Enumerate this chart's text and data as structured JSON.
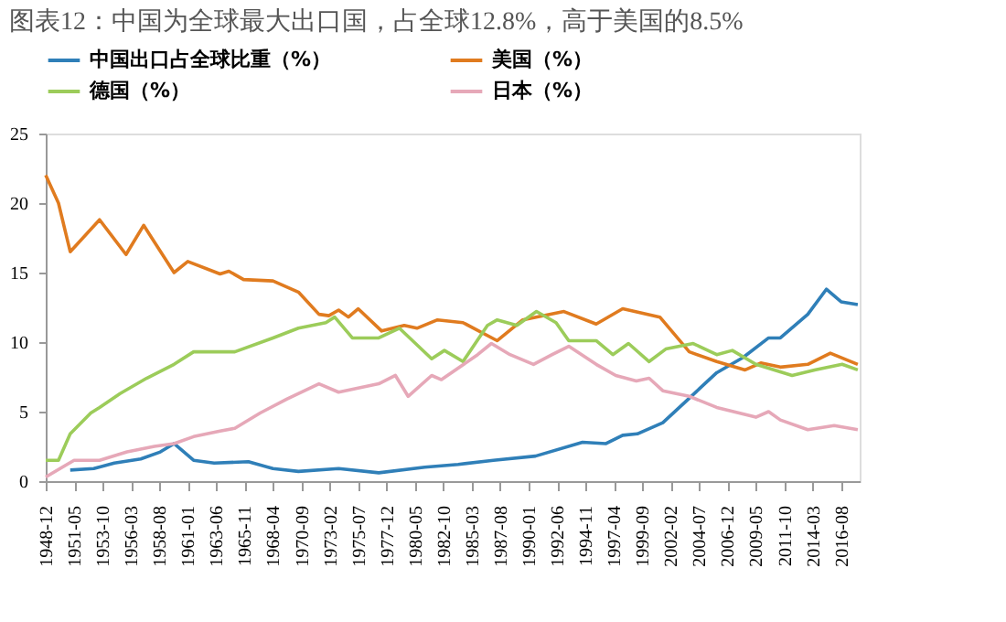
{
  "chart_data": {
    "type": "line",
    "title": "图表12：中国为全球最大出口国，占全球12.8%，高于美国的8.5%",
    "series": [
      {
        "name": "中国出口占全球比重（%）",
        "color": "#2f7fb8",
        "x": [
          "1951-01",
          "1953-01",
          "1954-10",
          "1957-01",
          "1958-09",
          "1959-11",
          "1961-07",
          "1963-04",
          "1966-03",
          "1968-04",
          "1970-06",
          "1973-11",
          "1977-04",
          "1981-03",
          "1984-01",
          "1987-01",
          "1990-08",
          "1994-08",
          "1996-08",
          "1998-01",
          "1999-04",
          "2001-06",
          "2003-08",
          "2006-01",
          "2008-04",
          "2010-06",
          "2011-06",
          "2013-10",
          "2015-05",
          "2016-08",
          "2018-01"
        ],
        "values": [
          0.8,
          0.9,
          1.3,
          1.6,
          2.1,
          2.7,
          1.5,
          1.3,
          1.4,
          0.9,
          0.7,
          0.9,
          0.6,
          1.0,
          1.2,
          1.5,
          1.8,
          2.8,
          2.7,
          3.3,
          3.4,
          4.2,
          5.9,
          7.8,
          8.9,
          10.3,
          10.3,
          12.0,
          13.8,
          12.9,
          12.7
        ]
      },
      {
        "name": "美国（%）",
        "color": "#e07b1f",
        "x": [
          "1948-12",
          "1950-01",
          "1951-01",
          "1953-07",
          "1955-10",
          "1957-04",
          "1959-11",
          "1961-01",
          "1963-10",
          "1964-07",
          "1965-10",
          "1968-04",
          "1970-06",
          "1972-03",
          "1973-01",
          "1973-11",
          "1974-09",
          "1975-07",
          "1977-07",
          "1979-06",
          "1980-07",
          "1982-04",
          "1984-06",
          "1987-05",
          "1989-07",
          "1993-01",
          "1995-10",
          "1998-01",
          "2001-03",
          "2003-09",
          "2006-01",
          "2008-06",
          "2009-10",
          "2011-06",
          "2013-10",
          "2015-09",
          "2018-01"
        ],
        "values": [
          22,
          20,
          16.5,
          18.8,
          16.3,
          18.4,
          15.0,
          15.8,
          14.9,
          15.1,
          14.5,
          14.4,
          13.6,
          12.0,
          11.9,
          12.3,
          11.8,
          12.4,
          10.8,
          11.2,
          11.0,
          11.6,
          11.4,
          10.1,
          11.6,
          12.2,
          11.3,
          12.4,
          11.8,
          9.3,
          8.6,
          8.0,
          8.5,
          8.2,
          8.4,
          9.2,
          8.4
        ]
      },
      {
        "name": "德国（%）",
        "color": "#9ccc5a",
        "x": [
          "1948-12",
          "1950-01",
          "1951-01",
          "1952-10",
          "1953-07",
          "1955-04",
          "1957-07",
          "1959-11",
          "1961-07",
          "1965-01",
          "1968-04",
          "1970-06",
          "1972-10",
          "1973-07",
          "1975-01",
          "1977-04",
          "1979-01",
          "1981-10",
          "1982-11",
          "1984-06",
          "1986-07",
          "1987-05",
          "1989-01",
          "1990-09",
          "1992-05",
          "1993-06",
          "1995-10",
          "1997-03",
          "1998-07",
          "2000-04",
          "2001-09",
          "2004-01",
          "2006-01",
          "2007-05",
          "2009-05",
          "2012-06",
          "2014-05",
          "2016-09",
          "2018-01"
        ],
        "values": [
          1.5,
          1.5,
          3.4,
          4.9,
          5.3,
          6.3,
          7.4,
          8.4,
          9.3,
          9.3,
          10.3,
          11.0,
          11.4,
          11.8,
          10.3,
          10.3,
          11.0,
          8.8,
          9.4,
          8.6,
          11.2,
          11.6,
          11.2,
          12.2,
          11.4,
          10.1,
          10.1,
          9.1,
          9.9,
          8.6,
          9.5,
          9.9,
          9.1,
          9.4,
          8.4,
          7.6,
          8.0,
          8.4,
          8.0
        ]
      },
      {
        "name": "日本（%）",
        "color": "#e6a8b8",
        "x": [
          "1948-12",
          "1951-05",
          "1953-07",
          "1955-11",
          "1958-03",
          "1959-11",
          "1961-07",
          "1963-10",
          "1965-01",
          "1967-03",
          "1969-06",
          "1972-03",
          "1973-11",
          "1977-04",
          "1978-09",
          "1979-10",
          "1981-10",
          "1982-08",
          "1985-09",
          "1986-11",
          "1988-06",
          "1990-06",
          "1992-01",
          "1993-06",
          "1995-10",
          "1997-06",
          "1999-03",
          "2000-04",
          "2001-06",
          "2003-09",
          "2006-01",
          "2009-05",
          "2010-06",
          "2011-06",
          "2013-10",
          "2016-01",
          "2018-01"
        ],
        "values": [
          0.3,
          1.5,
          1.5,
          2.1,
          2.5,
          2.7,
          3.2,
          3.6,
          3.8,
          4.9,
          5.9,
          7.0,
          6.4,
          7.0,
          7.6,
          6.1,
          7.6,
          7.3,
          9.1,
          9.9,
          9.1,
          8.4,
          9.1,
          9.7,
          8.4,
          7.6,
          7.2,
          7.4,
          6.5,
          6.1,
          5.3,
          4.6,
          5.0,
          4.4,
          3.7,
          4.0,
          3.7
        ]
      }
    ],
    "xlim": [
      "1948-12",
      "2018-03"
    ],
    "xticks": [
      "1948-12",
      "1951-05",
      "1953-10",
      "1956-03",
      "1958-08",
      "1961-01",
      "1963-06",
      "1965-11",
      "1968-04",
      "1970-09",
      "1973-02",
      "1975-07",
      "1977-12",
      "1980-05",
      "1982-10",
      "1985-03",
      "1987-08",
      "1990-01",
      "1992-06",
      "1994-11",
      "1997-04",
      "1999-09",
      "2002-02",
      "2004-07",
      "2006-12",
      "2009-05",
      "2011-10",
      "2014-03",
      "2016-08"
    ],
    "ylim": [
      0,
      25
    ],
    "yticks": [
      0,
      5,
      10,
      15,
      20,
      25
    ],
    "grid": false,
    "legend": "top",
    "marker": "none",
    "line_style": "solid"
  }
}
